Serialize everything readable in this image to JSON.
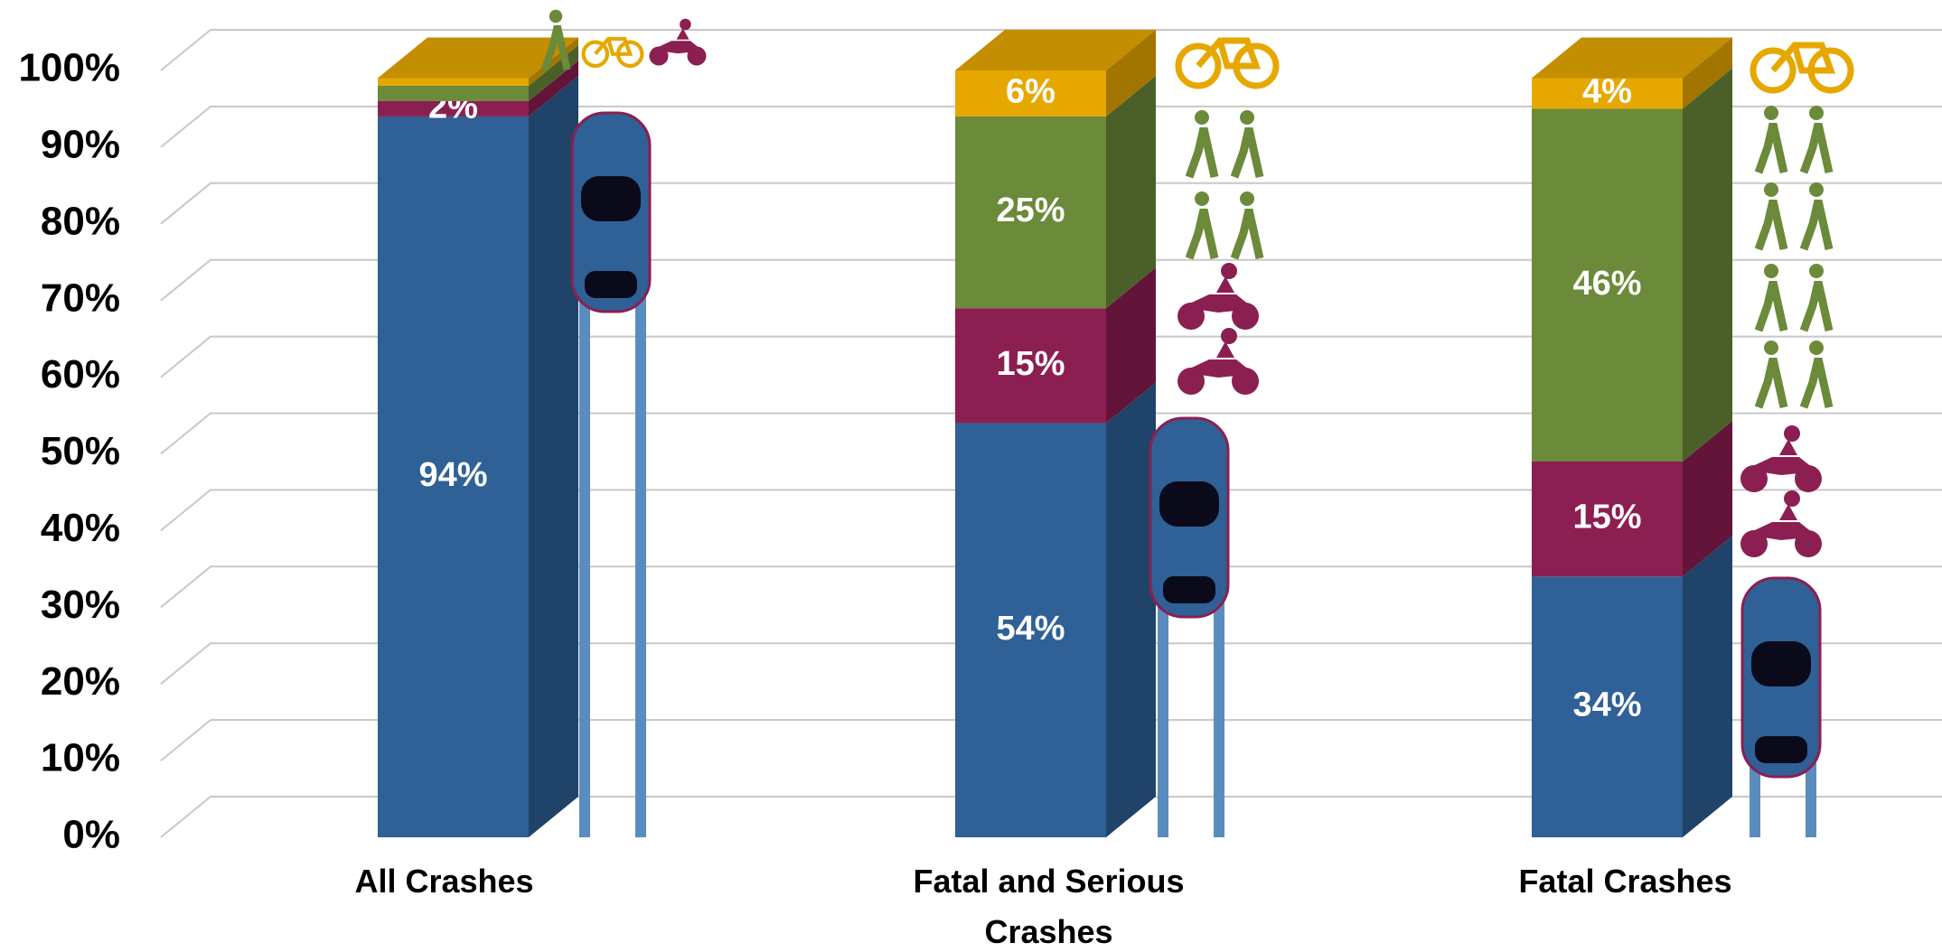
{
  "chart_data": {
    "type": "stacked-bar-3d",
    "categories": [
      "All Crashes",
      "Fatal and Serious Crashes",
      "Fatal Crashes"
    ],
    "series": [
      {
        "color": "#2f6096",
        "values": [
          94,
          54,
          34
        ],
        "value_labels": [
          "94%",
          "54%",
          "34%"
        ]
      },
      {
        "color": "#8c1f52",
        "values": [
          2,
          15,
          15
        ],
        "value_labels": [
          "2%",
          "15%",
          "15%"
        ]
      },
      {
        "color": "#6b8a3a",
        "values": [
          2,
          25,
          46
        ],
        "value_labels": [
          null,
          "25%",
          "46%"
        ]
      },
      {
        "color": "#e6a800",
        "values": [
          1,
          6,
          4
        ],
        "value_labels": [
          null,
          "6%",
          "4%"
        ]
      }
    ],
    "ylim": [
      0,
      100
    ],
    "yticks": [
      {
        "value": 0,
        "label": "0%"
      },
      {
        "value": 10,
        "label": "10%"
      },
      {
        "value": 20,
        "label": "20%"
      },
      {
        "value": 30,
        "label": "30%"
      },
      {
        "value": 40,
        "label": "40%"
      },
      {
        "value": 50,
        "label": "50%"
      },
      {
        "value": 60,
        "label": "60%"
      },
      {
        "value": 70,
        "label": "70%"
      },
      {
        "value": 80,
        "label": "80%"
      },
      {
        "value": 90,
        "label": "90%"
      },
      {
        "value": 100,
        "label": "100%"
      }
    ],
    "grid": true
  }
}
